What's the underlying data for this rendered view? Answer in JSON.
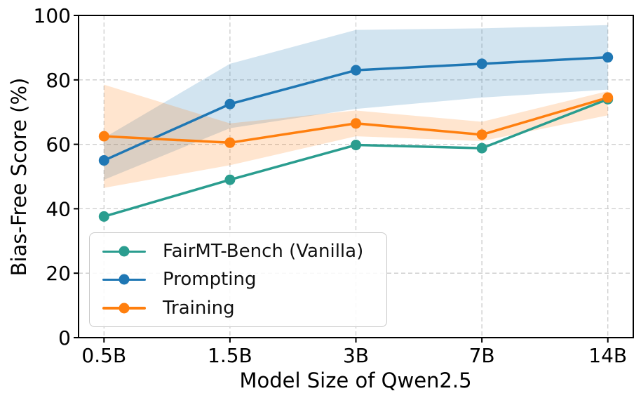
{
  "chart_data": {
    "type": "line",
    "title": "",
    "xlabel": "Model Size of Qwen2.5",
    "ylabel": "Bias-Free Score (%)",
    "categories": [
      "0.5B",
      "1.5B",
      "3B",
      "7B",
      "14B"
    ],
    "yticks": [
      0,
      20,
      40,
      60,
      80,
      100
    ],
    "ylim": [
      0,
      100
    ],
    "grid": true,
    "grid_style": "dashed",
    "legend_position": "lower left",
    "series": [
      {
        "name": "FairMT-Bench (Vanilla)",
        "color": "#2a9d8f",
        "values": [
          37.6,
          49,
          59.8,
          58.8,
          74
        ]
      },
      {
        "name": "Prompting",
        "color": "#1f77b4",
        "values": [
          55,
          72.5,
          83,
          85,
          87
        ],
        "band_low": [
          49,
          65,
          71,
          74.5,
          77
        ],
        "band_high": [
          62,
          85,
          95.5,
          96,
          97
        ],
        "band_opacity": 0.2
      },
      {
        "name": "Training",
        "color": "#ff7f0e",
        "values": [
          62.5,
          60.5,
          66.5,
          63,
          74.5
        ],
        "band_low": [
          46.5,
          53.5,
          62.5,
          61,
          69
        ],
        "band_high": [
          78.5,
          66.5,
          70.5,
          67,
          76.5
        ],
        "band_opacity": 0.2
      }
    ],
    "colors": {
      "spine": "#000000",
      "gridline": "#cccccc",
      "text": "#000000"
    }
  }
}
